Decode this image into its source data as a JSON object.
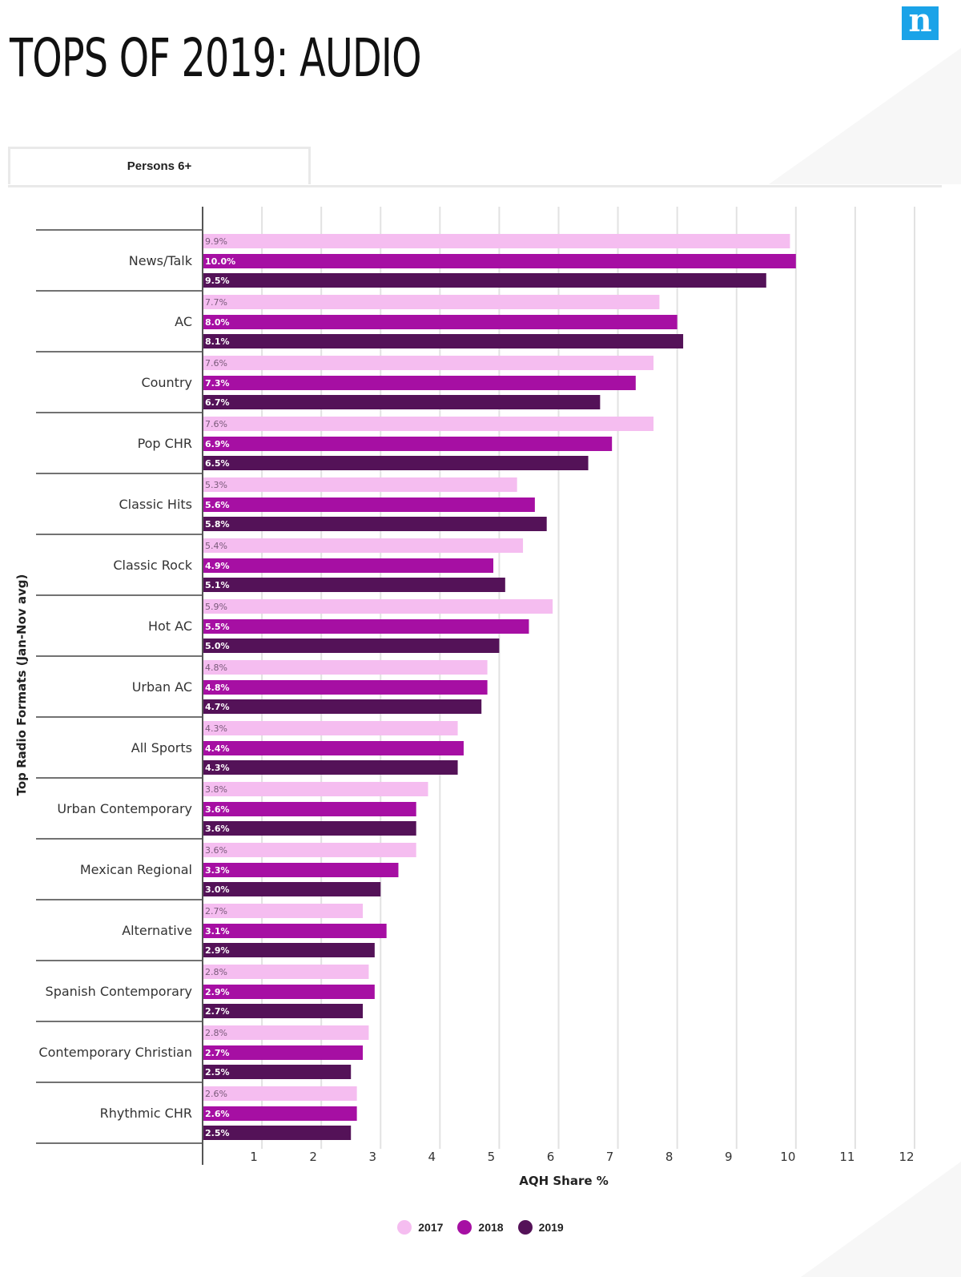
{
  "title": "TOPS OF 2019: AUDIO",
  "logo_letter": "n",
  "tabs": [
    {
      "label": "Persons 6+"
    }
  ],
  "chart_data": {
    "type": "bar",
    "orientation": "horizontal",
    "ylabel": "Top Radio Formats (Jan-Nov avg)",
    "xlabel": "AQH Share %",
    "xlim": [
      0,
      12
    ],
    "xticks": [
      1,
      2,
      3,
      4,
      5,
      6,
      7,
      8,
      9,
      10,
      11,
      12
    ],
    "grid": true,
    "legend_position": "bottom",
    "categories": [
      "News/Talk",
      "AC",
      "Country",
      "Pop CHR",
      "Classic Hits",
      "Classic Rock",
      "Hot AC",
      "Urban AC",
      "All Sports",
      "Urban Contemporary",
      "Mexican Regional",
      "Alternative",
      "Spanish Contemporary",
      "Contemporary Christian",
      "Rhythmic CHR"
    ],
    "series": [
      {
        "name": "2017",
        "color": "#f5bdf0",
        "values": [
          9.9,
          7.7,
          7.6,
          7.6,
          5.3,
          5.4,
          5.9,
          4.8,
          4.3,
          3.8,
          3.6,
          2.7,
          2.8,
          2.8,
          2.6
        ],
        "labels": [
          "9.9%",
          "7.7%",
          "7.6%",
          "7.6%",
          "5.3%",
          "5.4%",
          "5.9%",
          "4.8%",
          "4.3%",
          "3.8%",
          "3.6%",
          "2.7%",
          "2.8%",
          "2.8%",
          "2.6%"
        ]
      },
      {
        "name": "2018",
        "color": "#a60fa3",
        "values": [
          10.0,
          8.0,
          7.3,
          6.9,
          5.6,
          4.9,
          5.5,
          4.8,
          4.4,
          3.6,
          3.3,
          3.1,
          2.9,
          2.7,
          2.6
        ],
        "labels": [
          "10.0%",
          "8.0%",
          "7.3%",
          "6.9%",
          "5.6%",
          "4.9%",
          "5.5%",
          "4.8%",
          "4.4%",
          "3.6%",
          "3.3%",
          "3.1%",
          "2.9%",
          "2.7%",
          "2.6%"
        ]
      },
      {
        "name": "2019",
        "color": "#541258",
        "values": [
          9.5,
          8.1,
          6.7,
          6.5,
          5.8,
          5.1,
          5.0,
          4.7,
          4.3,
          3.6,
          3.0,
          2.9,
          2.7,
          2.5,
          2.5
        ],
        "labels": [
          "9.5%",
          "8.1%",
          "6.7%",
          "6.5%",
          "5.8%",
          "5.1%",
          "5.0%",
          "4.7%",
          "4.3%",
          "3.6%",
          "3.0%",
          "2.9%",
          "2.7%",
          "2.5%",
          "2.5%"
        ]
      }
    ]
  }
}
